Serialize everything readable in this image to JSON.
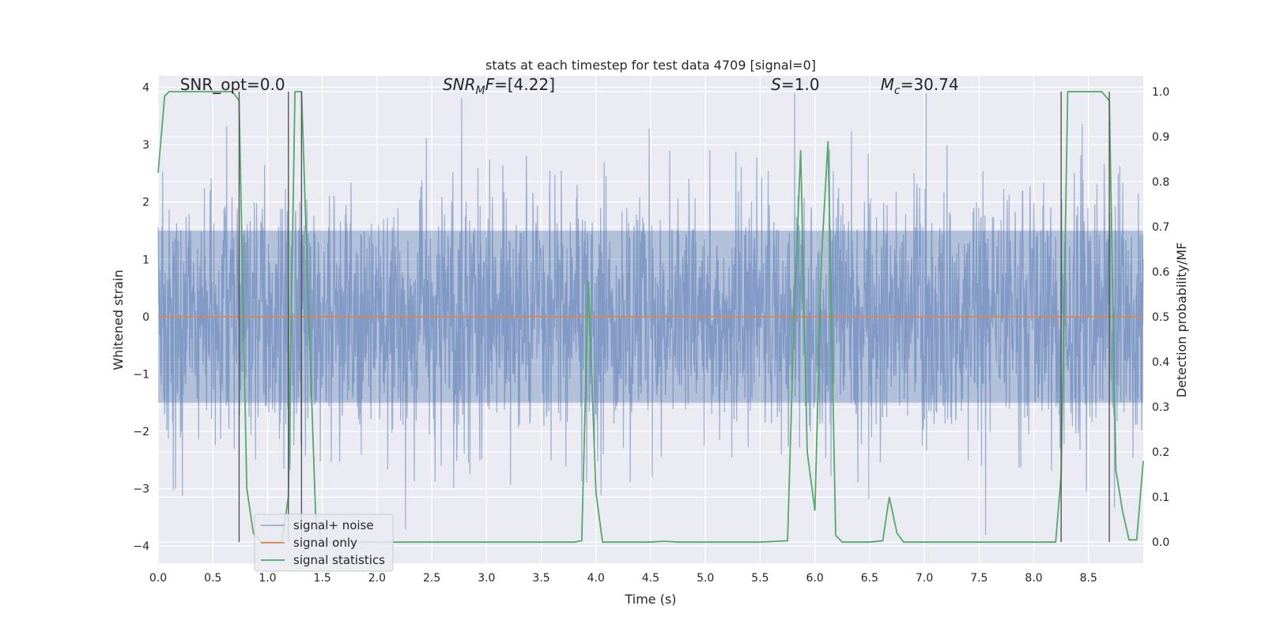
{
  "chart_data": {
    "type": "line",
    "title": "stats at each timestep for test data 4709 [signal=0]",
    "xlabel": "Time (s)",
    "ylabel_left": "Whitened strain",
    "ylabel_right": "Detection probability/MF",
    "xlim": [
      0.0,
      9.0
    ],
    "ylim_left": [
      -4.3,
      4.2
    ],
    "ylim_right": [
      -0.047,
      1.035
    ],
    "xticks": [
      0.0,
      0.5,
      1.0,
      1.5,
      2.0,
      2.5,
      3.0,
      3.5,
      4.0,
      4.5,
      5.0,
      5.5,
      6.0,
      6.5,
      7.0,
      7.5,
      8.0,
      8.5
    ],
    "xtick_labels": [
      "0.0",
      "0.5",
      "1.0",
      "1.5",
      "2.0",
      "2.5",
      "3.0",
      "3.5",
      "4.0",
      "4.5",
      "5.0",
      "5.5",
      "6.0",
      "6.5",
      "7.0",
      "7.5",
      "8.0",
      "8.5"
    ],
    "yticks_left": [
      -4,
      -3,
      -2,
      -1,
      0,
      1,
      2,
      3,
      4
    ],
    "ytick_labels_left": [
      "−4",
      "−3",
      "−2",
      "−1",
      "0",
      "1",
      "2",
      "3",
      "4"
    ],
    "yticks_right": [
      0.0,
      0.1,
      0.2,
      0.3,
      0.4,
      0.5,
      0.6,
      0.7,
      0.8,
      0.9,
      1.0
    ],
    "ytick_labels_right": [
      "0.0",
      "0.1",
      "0.2",
      "0.3",
      "0.4",
      "0.5",
      "0.6",
      "0.7",
      "0.8",
      "0.9",
      "1.0"
    ],
    "grid": true,
    "legend_position": "lower-left",
    "annotations": [
      {
        "text": "SNR_opt=0.0",
        "x": 0.2,
        "y": 4.05
      },
      {
        "text": "SNR_MF=[4.22]",
        "x": 2.6,
        "y": 4.05
      },
      {
        "text": "S=1.0",
        "x": 5.6,
        "y": 4.05
      },
      {
        "text": "M_c=30.74",
        "x": 6.6,
        "y": 4.05
      }
    ],
    "vlines": [
      0.74,
      1.19,
      1.31,
      8.25,
      8.69
    ],
    "series": [
      {
        "name": "signal+ noise",
        "color": "#4c72b0",
        "axis": "left",
        "kind": "noise",
        "x_range": [
          0.0,
          9.0
        ],
        "core_band": [
          -1.5,
          1.5
        ],
        "peak_range": [
          -3.8,
          3.9
        ]
      },
      {
        "name": "signal only",
        "color": "#dd8452",
        "axis": "left",
        "x": [
          0.0,
          9.0
        ],
        "y": [
          0.0,
          0.0
        ]
      },
      {
        "name": "signal statistics",
        "color": "#55a868",
        "axis": "right",
        "x": [
          0.0,
          0.06,
          0.1,
          0.3,
          0.55,
          0.68,
          0.74,
          0.81,
          0.87,
          0.94,
          1.0,
          1.06,
          1.13,
          1.19,
          1.25,
          1.31,
          1.37,
          1.44,
          1.5,
          1.56,
          1.62,
          3.8,
          3.87,
          3.93,
          4.0,
          4.06,
          4.5,
          4.62,
          4.75,
          5.5,
          5.75,
          5.81,
          5.87,
          5.93,
          6.0,
          6.06,
          6.12,
          6.19,
          6.25,
          6.5,
          6.62,
          6.68,
          6.75,
          6.81,
          8.2,
          8.25,
          8.31,
          8.35,
          8.62,
          8.69,
          8.75,
          8.81,
          8.87,
          8.94,
          9.0
        ],
        "y": [
          0.82,
          0.99,
          1.0,
          1.0,
          1.0,
          1.0,
          0.98,
          0.12,
          0.02,
          0.0,
          0.0,
          0.0,
          0.0,
          0.1,
          1.0,
          1.0,
          0.55,
          0.05,
          0.0,
          0.0,
          0.0,
          0.0,
          0.003,
          0.58,
          0.11,
          0.0,
          0.0,
          0.002,
          0.0,
          0.0,
          0.003,
          0.5,
          0.87,
          0.2,
          0.07,
          0.63,
          0.89,
          0.015,
          0.0,
          0.0,
          0.003,
          0.1,
          0.02,
          0.0,
          0.0,
          0.15,
          1.0,
          1.0,
          1.0,
          0.98,
          0.16,
          0.07,
          0.005,
          0.005,
          0.18
        ]
      }
    ]
  }
}
